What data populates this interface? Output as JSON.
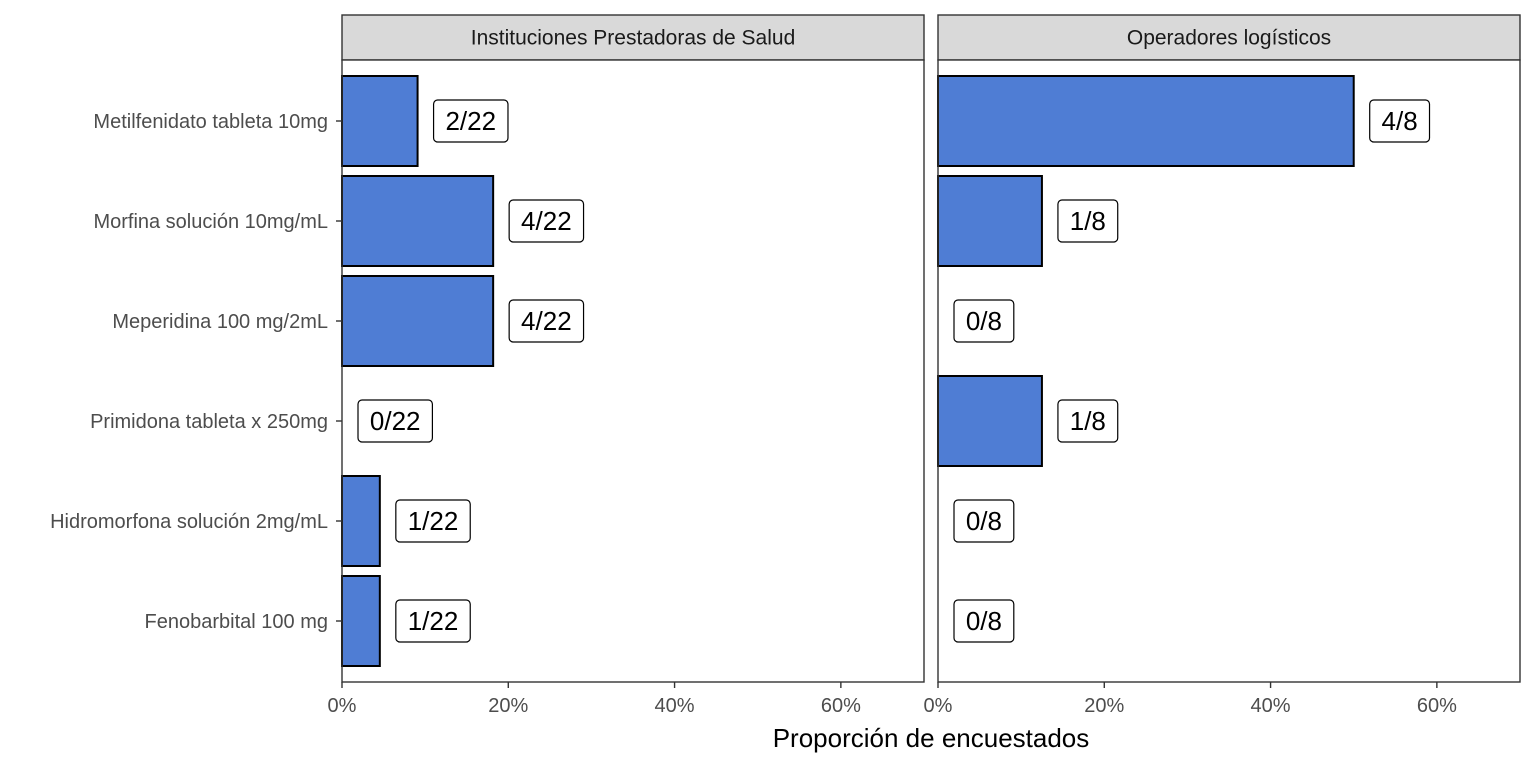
{
  "chart_data": {
    "type": "bar",
    "orientation": "horizontal",
    "xlabel": "Proporción de encuestados",
    "xlim": [
      0,
      0.7
    ],
    "xticks": [
      0,
      0.2,
      0.4,
      0.6
    ],
    "xtick_labels": [
      "0%",
      "20%",
      "40%",
      "60%"
    ],
    "categories": [
      "Metilfenidato tableta 10mg",
      "Morfina solución 10mg/mL",
      "Meperidina 100 mg/2mL",
      "Primidona tableta x 250mg",
      "Hidromorfona solución 2mg/mL",
      "Fenobarbital 100 mg"
    ],
    "bar_color": "#4f7dd4",
    "grid": false,
    "facets": [
      {
        "name": "Instituciones Prestadoras de Salud",
        "values": [
          0.0909,
          0.1818,
          0.1818,
          0.0,
          0.0455,
          0.0455
        ],
        "labels": [
          "2/22",
          "4/22",
          "4/22",
          "0/22",
          "1/22",
          "1/22"
        ]
      },
      {
        "name": "Operadores logísticos",
        "values": [
          0.5,
          0.125,
          0.0,
          0.125,
          0.0,
          0.0
        ],
        "labels": [
          "4/8",
          "1/8",
          "0/8",
          "1/8",
          "0/8",
          "0/8"
        ]
      }
    ]
  }
}
